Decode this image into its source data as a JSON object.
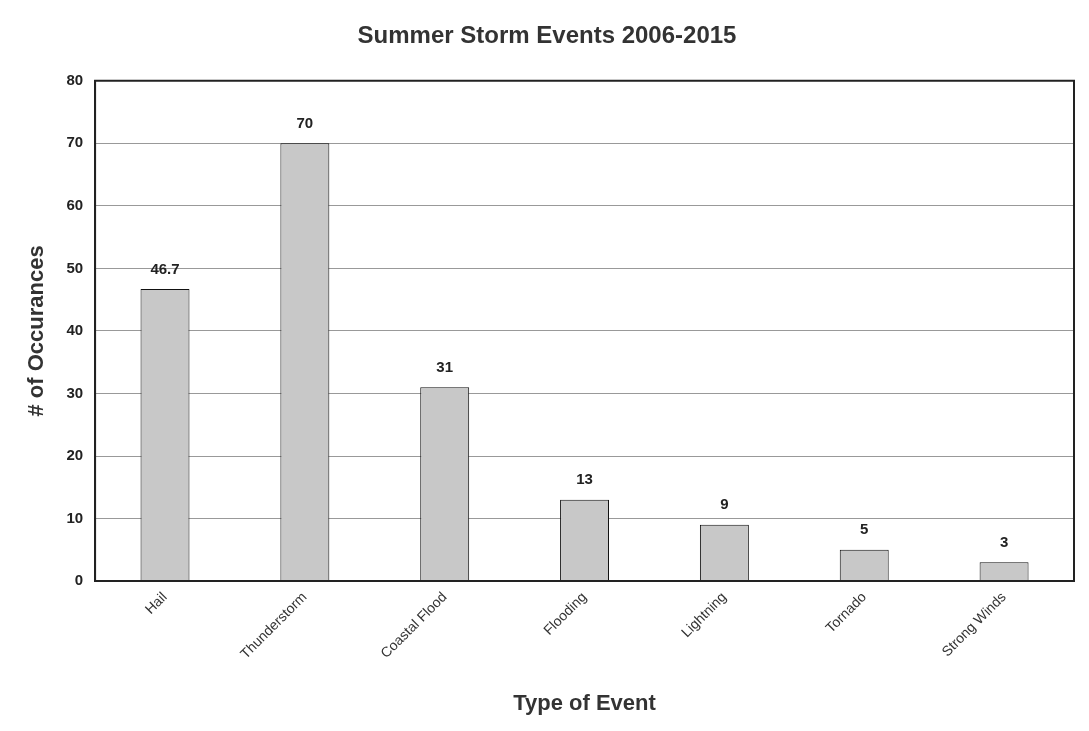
{
  "chart_data": {
    "type": "bar",
    "title": "Summer Storm Events 2006-2015",
    "xlabel": "Type of Event",
    "ylabel": "# of Occurances",
    "categories": [
      "Hail",
      "Thunderstorm",
      "Coastal Flood",
      "Flooding",
      "Lightning",
      "Tornado",
      "Strong Winds"
    ],
    "values": [
      46.7,
      70,
      31,
      13,
      9,
      5,
      3
    ],
    "color": "#c8c8c8",
    "ylim": [
      0,
      80
    ],
    "yticks": [
      0,
      10,
      20,
      30,
      40,
      50,
      60,
      70,
      80
    ],
    "grid": "y",
    "data_labels": true,
    "legend": false
  }
}
